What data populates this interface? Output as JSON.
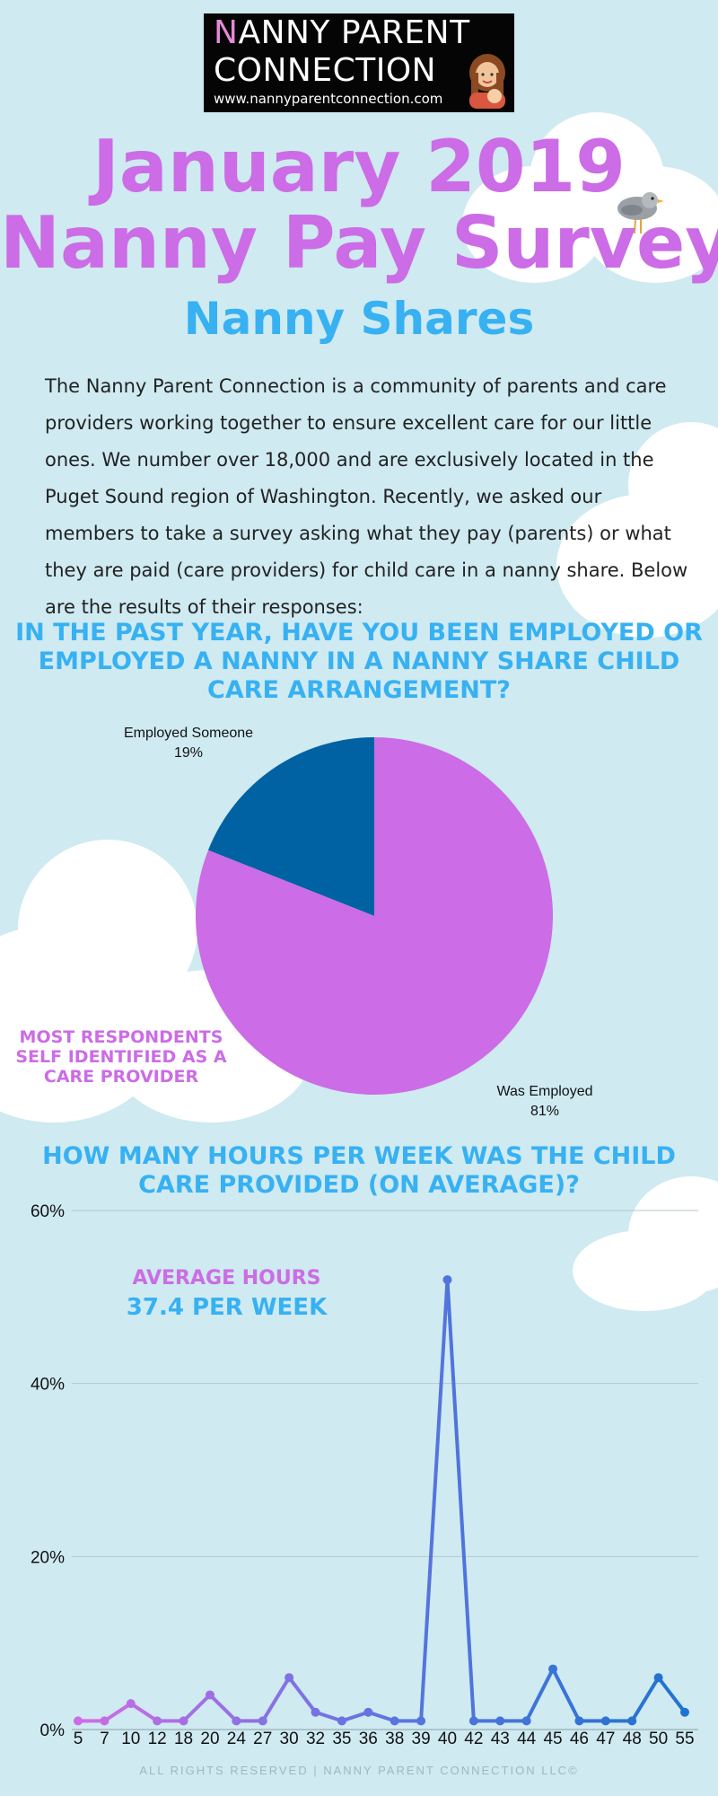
{
  "logo": {
    "line1_first": "N",
    "line1_rest": "ANNY PARENT",
    "line2": "CONNECTION",
    "url": "www.nannyparentconnection.com"
  },
  "header": {
    "title_line1": "January 2019",
    "title_line2": "Nanny Pay Survey",
    "subtitle": "Nanny Shares"
  },
  "intro": "The Nanny Parent Connection is a community of parents and care providers working together to ensure excellent care for our little ones. We number over 18,000 and are exclusively located in the Puget Sound region of Washington. Recently, we asked our members to take a survey asking what they pay (parents) or what they are paid (care providers) for child care in a nanny share. Below are the results of their responses:",
  "question1": "IN THE PAST YEAR, HAVE YOU BEEN EMPLOYED OR EMPLOYED A NANNY IN A NANNY SHARE CHILD CARE ARRANGEMENT?",
  "note1": "MOST RESPONDENTS SELF IDENTIFIED AS A CARE PROVIDER",
  "question2": "HOW MANY HOURS PER WEEK WAS THE CHILD CARE PROVIDED (ON AVERAGE)?",
  "average": {
    "label": "AVERAGE HOURS",
    "value": "37.4 PER WEEK"
  },
  "footer": "ALL RIGHTS RESERVED | NANNY PARENT CONNECTION LLC©",
  "colors": {
    "background": "#cfeaf1",
    "purple": "#cc6ce6",
    "blue": "#37b1f2",
    "pie_dark": "#0062a3",
    "line_mid": "#5d74e0",
    "line_dark": "#1e73cf"
  },
  "chart_data": [
    {
      "type": "pie",
      "slices": [
        {
          "label": "Employed Someone",
          "value": 19,
          "display": "19%",
          "color": "#0062a3"
        },
        {
          "label": "Was Employed",
          "value": 81,
          "display": "81%",
          "color": "#cc6ce6"
        }
      ]
    },
    {
      "type": "line",
      "categories": [
        "5",
        "7",
        "10",
        "12",
        "18",
        "20",
        "24",
        "27",
        "30",
        "32",
        "35",
        "36",
        "38",
        "39",
        "40",
        "42",
        "43",
        "44",
        "45",
        "46",
        "47",
        "48",
        "50",
        "55"
      ],
      "series": [
        {
          "values": [
            1,
            1,
            3,
            1,
            1,
            4,
            1,
            1,
            6,
            2,
            1,
            2,
            1,
            1,
            52,
            1,
            1,
            1,
            7,
            1,
            1,
            1,
            6,
            2
          ]
        }
      ],
      "ylim": [
        0,
        60
      ],
      "yticks": [
        0,
        20,
        40,
        60
      ],
      "ytick_labels": [
        "0%",
        "20%",
        "40%",
        "60%"
      ],
      "grid": true
    }
  ]
}
